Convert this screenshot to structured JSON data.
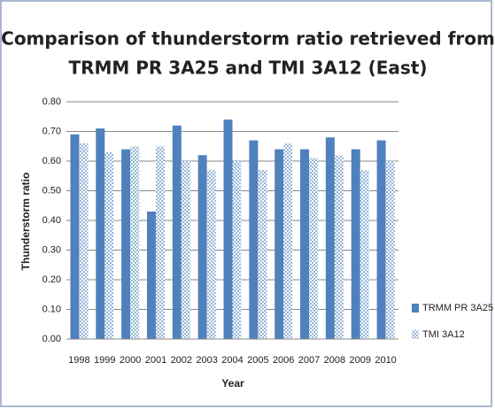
{
  "chart_data": {
    "type": "bar",
    "title": [
      "Comparison of thunderstorm ratio retrieved from",
      "TRMM PR 3A25 and TMI 3A12 (East)"
    ],
    "x_label": "Year",
    "y_label": "Thunderstorm ratio",
    "categories": [
      "1998",
      "1999",
      "2000",
      "2001",
      "2002",
      "2003",
      "2004",
      "2005",
      "2006",
      "2007",
      "2008",
      "2009",
      "2010"
    ],
    "series": [
      {
        "name": "TRMM PR 3A25",
        "color": "#4f81bd",
        "values": [
          0.69,
          0.71,
          0.64,
          0.43,
          0.72,
          0.62,
          0.74,
          0.67,
          0.64,
          0.64,
          0.68,
          0.64,
          0.67
        ]
      },
      {
        "name": "TMI 3A12",
        "color": "#4f81bd",
        "pattern": "dotted",
        "values": [
          0.66,
          0.63,
          0.65,
          0.65,
          0.6,
          0.57,
          0.6,
          0.57,
          0.66,
          0.61,
          0.62,
          0.57,
          0.6
        ]
      }
    ],
    "ylim": [
      0,
      0.8
    ],
    "yticks": [
      {
        "value": 0,
        "label": "0.00"
      },
      {
        "value": 0.1,
        "label": "0.10"
      },
      {
        "value": 0.2,
        "label": "0.20"
      },
      {
        "value": 0.3,
        "label": "0.30"
      },
      {
        "value": 0.4,
        "label": "0.40"
      },
      {
        "value": 0.5,
        "label": "0.50"
      },
      {
        "value": 0.6,
        "label": "0.60"
      },
      {
        "value": 0.7,
        "label": "0.70"
      },
      {
        "value": 0.8,
        "label": "0.80"
      }
    ],
    "grid": true,
    "legend": "right"
  }
}
